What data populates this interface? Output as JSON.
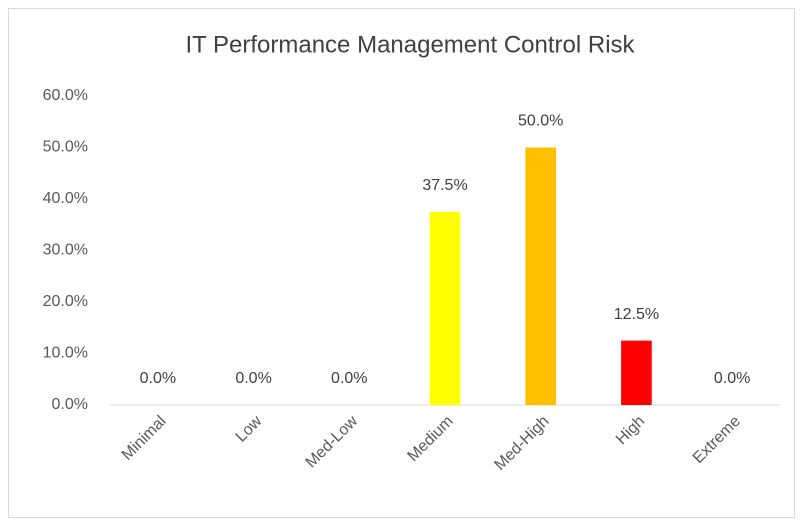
{
  "chart_data": {
    "type": "bar",
    "title": "IT Performance Management Control Risk",
    "categories": [
      "Minimal",
      "Low",
      "Med-Low",
      "Medium",
      "Med-High",
      "High",
      "Extreme"
    ],
    "values": [
      0,
      0,
      0,
      37.5,
      50,
      12.5,
      0
    ],
    "value_labels": [
      "0.0%",
      "0.0%",
      "0.0%",
      "37.5%",
      "50.0%",
      "12.5%",
      "0.0%"
    ],
    "colors": [
      null,
      null,
      null,
      "#FFFF00",
      "#FFC000",
      "#FF0000",
      null
    ],
    "ylim": [
      0,
      60
    ],
    "yticks": [
      {
        "value": 0,
        "label": "0.0%"
      },
      {
        "value": 10,
        "label": "10.0%"
      },
      {
        "value": 20,
        "label": "20.0%"
      },
      {
        "value": 30,
        "label": "30.0%"
      },
      {
        "value": 40,
        "label": "40.0%"
      },
      {
        "value": 50,
        "label": "50.0%"
      },
      {
        "value": 60,
        "label": "60.0%"
      }
    ],
    "grid": false
  }
}
